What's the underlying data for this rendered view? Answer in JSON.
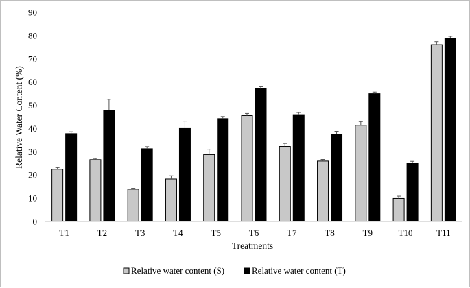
{
  "chart_data": {
    "type": "bar",
    "title": "",
    "xlabel": "Treatments",
    "ylabel": "Relative Water Content (%)",
    "ylim": [
      0,
      90
    ],
    "yticks": [
      0,
      10,
      20,
      30,
      40,
      50,
      60,
      70,
      80,
      90
    ],
    "grid": false,
    "legend_position": "bottom",
    "categories": [
      "T1",
      "T2",
      "T3",
      "T4",
      "T5",
      "T6",
      "T7",
      "T8",
      "T9",
      "T10",
      "T11"
    ],
    "series": [
      {
        "name": "Relative water content (S)",
        "color": "#c8c8c8",
        "values": [
          22.5,
          26.6,
          13.9,
          18.3,
          28.8,
          45.6,
          32.3,
          26.0,
          41.4,
          9.9,
          76.1
        ],
        "errors": [
          0.7,
          0.5,
          0.4,
          1.4,
          2.3,
          0.9,
          1.3,
          0.7,
          1.6,
          1.0,
          1.3
        ]
      },
      {
        "name": "Relative water content (T)",
        "color": "#000000",
        "values": [
          37.8,
          47.9,
          31.3,
          40.3,
          44.3,
          57.1,
          46.0,
          37.5,
          55.0,
          25.1,
          78.9
        ],
        "errors": [
          0.8,
          4.7,
          0.9,
          2.9,
          0.9,
          0.9,
          0.9,
          1.3,
          0.7,
          0.8,
          0.8
        ]
      }
    ]
  }
}
